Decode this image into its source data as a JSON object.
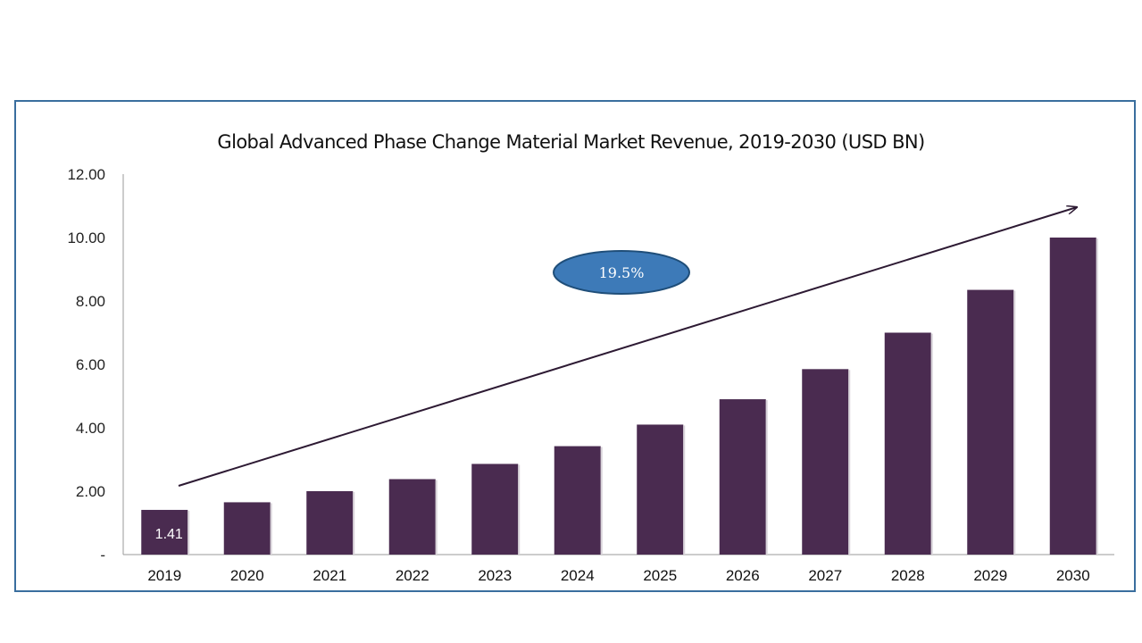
{
  "chart_data": {
    "type": "bar",
    "title": "Global Advanced Phase Change Material Market Revenue, 2019-2030 (USD BN)",
    "categories": [
      "2019",
      "2020",
      "2021",
      "2022",
      "2023",
      "2024",
      "2025",
      "2026",
      "2027",
      "2028",
      "2029",
      "2030"
    ],
    "values": [
      1.41,
      1.65,
      2.0,
      2.38,
      2.86,
      3.42,
      4.1,
      4.9,
      5.85,
      7.0,
      8.35,
      10.0
    ],
    "ylim": [
      0,
      12
    ],
    "yticks": [
      "-",
      "2.00",
      "4.00",
      "6.00",
      "8.00",
      "10.00",
      "12.00"
    ],
    "data_labels": [
      {
        "category": "2019",
        "text": "1.41"
      }
    ],
    "annotations": [
      {
        "type": "ellipse",
        "text": "19.5%"
      },
      {
        "type": "trend-arrow"
      }
    ],
    "grid": false,
    "legend": "none"
  },
  "colors": {
    "bar": "#4a2b50",
    "frame": "#3a6e9e",
    "cagr_fill": "#3d7ab8",
    "cagr_stroke": "#1f4e79",
    "arrow": "#2d1a33"
  }
}
